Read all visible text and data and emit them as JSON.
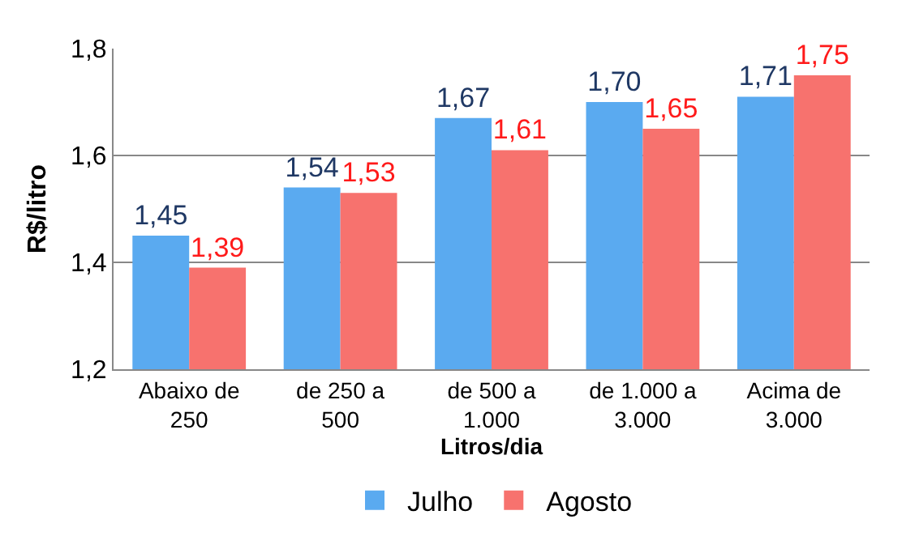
{
  "chart_data": {
    "type": "bar",
    "xlabel": "Litros/dia",
    "ylabel": "R$/litro",
    "categories": [
      "Abaixo de 250",
      "de 250 a 500",
      "de 500 a 1.000",
      "de 1.000 a 3.000",
      "Acima de 3.000"
    ],
    "series": [
      {
        "name": "Julho",
        "color": "#5aaaf0",
        "values": [
          1.45,
          1.54,
          1.67,
          1.7,
          1.71
        ],
        "value_labels": [
          "1,45",
          "1,54",
          "1,67",
          "1,70",
          "1,71"
        ]
      },
      {
        "name": "Agosto",
        "color": "#f7726e",
        "values": [
          1.39,
          1.53,
          1.61,
          1.65,
          1.75
        ],
        "value_labels": [
          "1,39",
          "1,53",
          "1,61",
          "1,65",
          "1,75"
        ]
      }
    ],
    "ylim": [
      1.2,
      1.8
    ],
    "yticks": [
      {
        "value": 1.2,
        "label": "1,2"
      },
      {
        "value": 1.4,
        "label": "1,4"
      },
      {
        "value": 1.6,
        "label": "1,6"
      },
      {
        "value": 1.8,
        "label": "1,8"
      }
    ],
    "grid": "y",
    "legend": "bottom"
  }
}
